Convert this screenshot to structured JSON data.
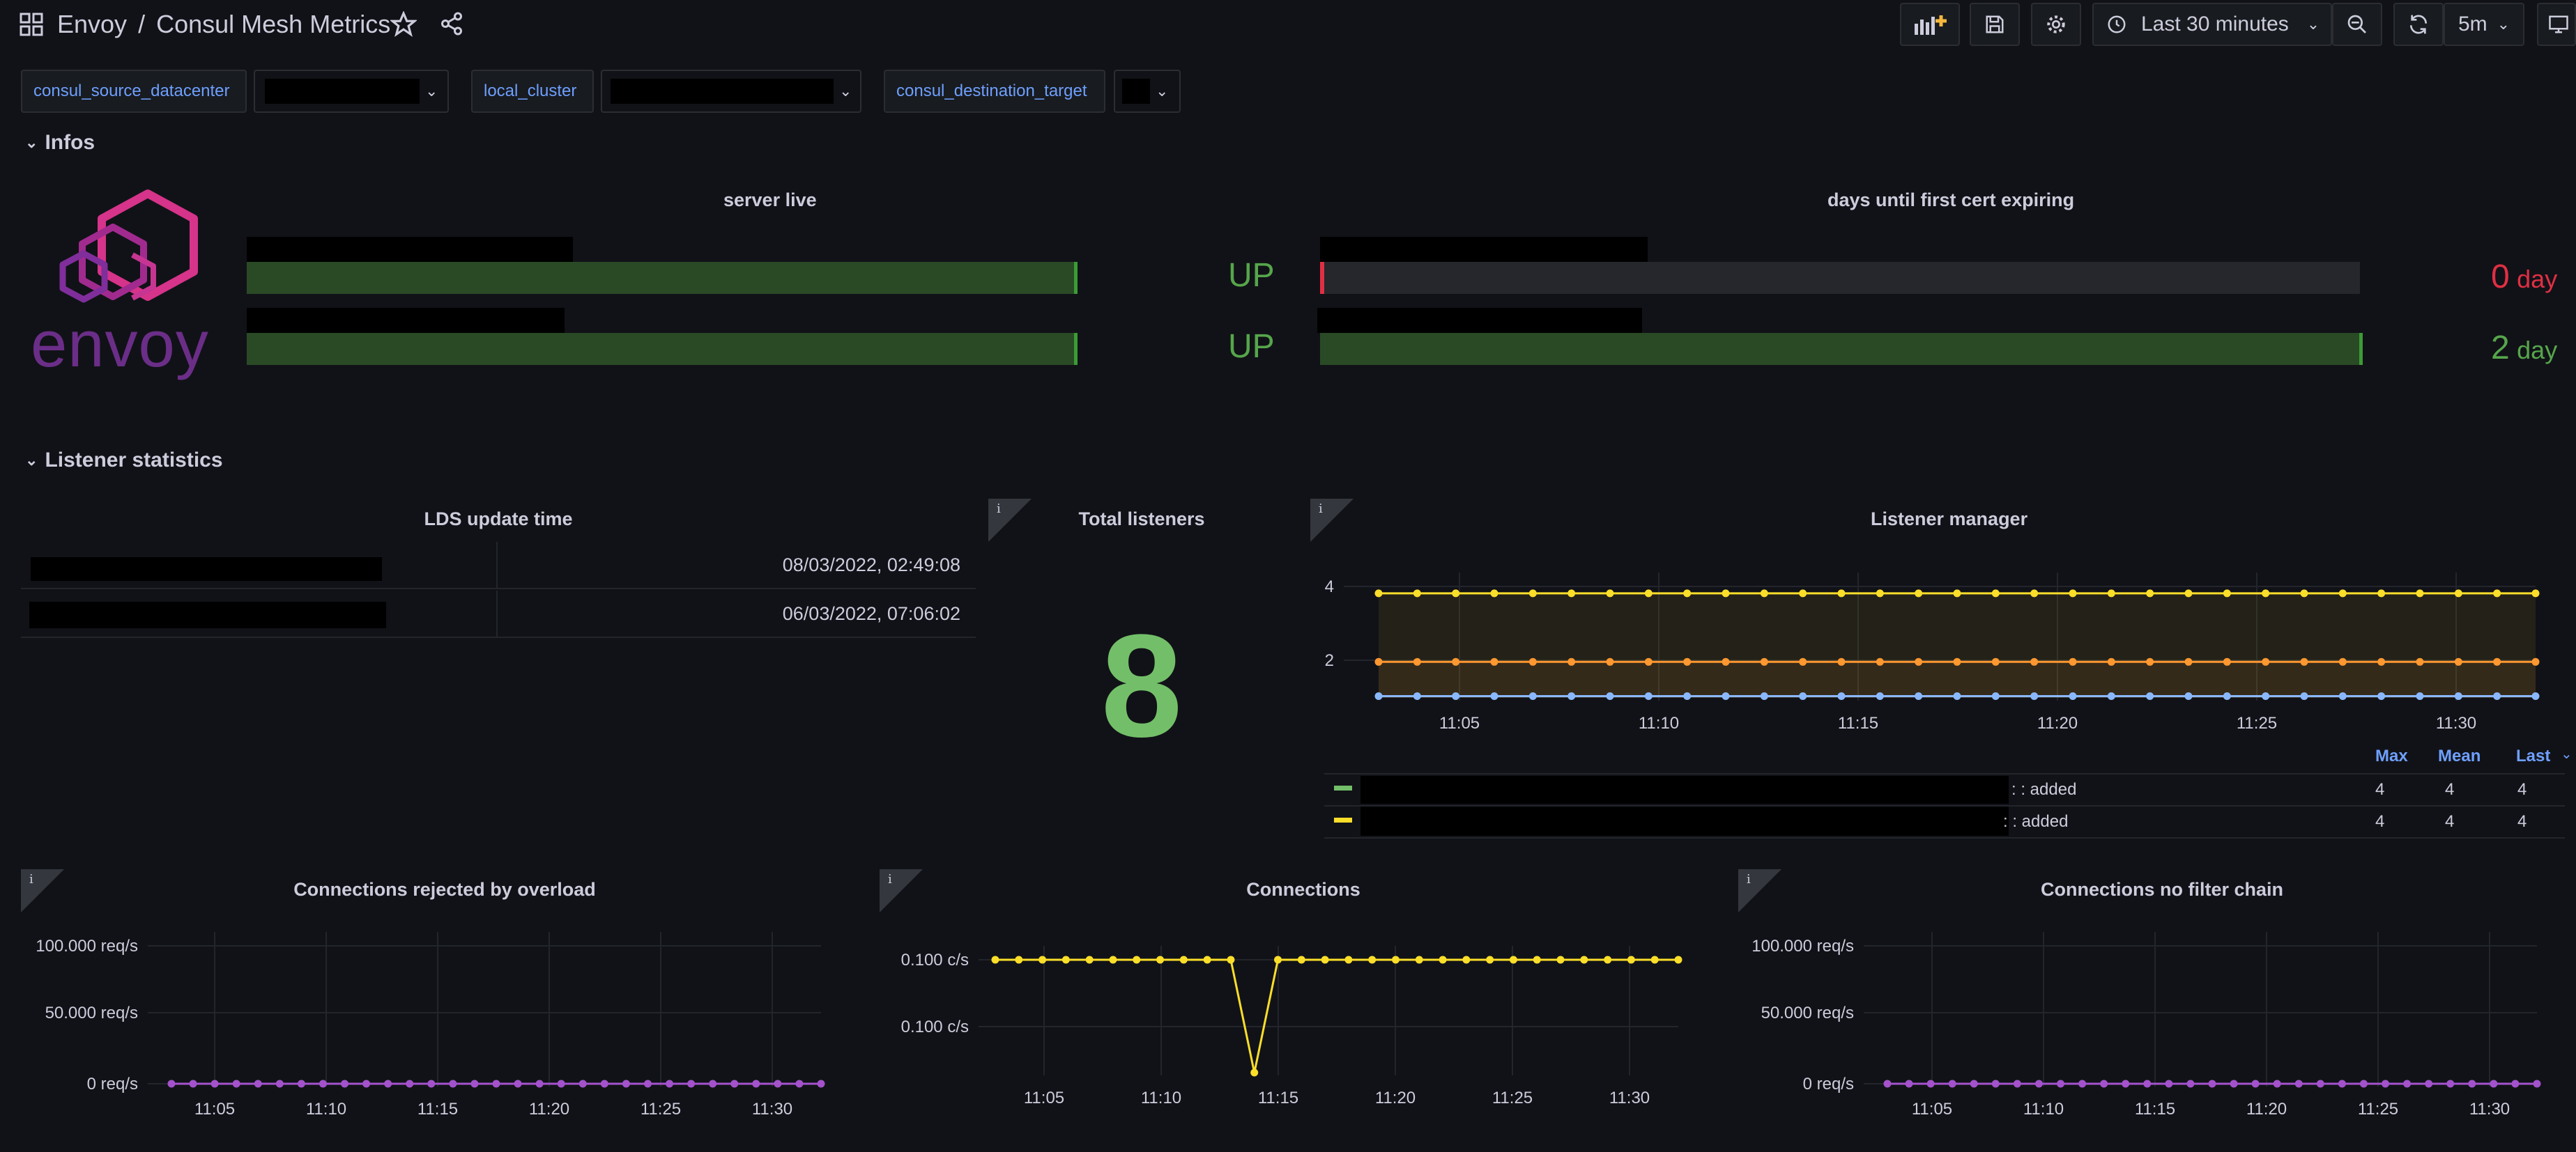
{
  "breadcrumb": {
    "folder": "Envoy",
    "separator": "/",
    "title": "Consul Mesh Metrics"
  },
  "toolbar": {
    "time_range": "Last 30 minutes",
    "refresh_interval": "5m"
  },
  "variables": [
    {
      "label": "consul_source_datacenter"
    },
    {
      "label": "local_cluster"
    },
    {
      "label": "consul_destination_target"
    }
  ],
  "rows": {
    "infos": "Infos",
    "listener": "Listener statistics"
  },
  "logo": {
    "text": "envoy"
  },
  "server_live": {
    "title": "server live",
    "items": [
      {
        "value": "UP",
        "level": 1.0
      },
      {
        "value": "UP",
        "level": 1.0
      }
    ]
  },
  "cert_expiry": {
    "title": "days until first cert expiring",
    "items": [
      {
        "value": "0",
        "unit": "day",
        "level": 0.0,
        "color": "#e02f44"
      },
      {
        "value": "2",
        "unit": "day",
        "level": 1.0,
        "color": "#56a64b"
      }
    ]
  },
  "lds": {
    "title": "LDS update time",
    "rows": [
      {
        "time": "08/03/2022, 02:49:08"
      },
      {
        "time": "06/03/2022, 07:06:02"
      }
    ]
  },
  "total_listeners": {
    "title": "Total listeners",
    "value": "8",
    "info": "i"
  },
  "listener_manager": {
    "title": "Listener manager",
    "info": "i",
    "legend_headers": [
      "Max",
      "Mean",
      "Last"
    ],
    "legend_rows": [
      {
        "suffix": ": : added",
        "max": "4",
        "mean": "4",
        "last": "4",
        "color": "#73bf69"
      },
      {
        "suffix": ": : added",
        "max": "4",
        "mean": "4",
        "last": "4",
        "color": "#fade2a"
      }
    ]
  },
  "panels": {
    "rejected": {
      "title": "Connections rejected by overload",
      "info": "i"
    },
    "connections": {
      "title": "Connections",
      "info": "i"
    },
    "no_filter": {
      "title": "Connections no filter chain",
      "info": "i"
    }
  },
  "chart_data": [
    {
      "type": "line",
      "title": "Listener manager",
      "xticks": [
        "11:05",
        "11:10",
        "11:15",
        "11:20",
        "11:25",
        "11:30"
      ],
      "yticks": [
        "4",
        "2"
      ],
      "ylim": [
        0.95,
        4.2
      ],
      "series": [
        {
          "color": "#fade2a",
          "values": [
            4,
            4,
            4,
            4,
            4,
            4,
            4,
            4,
            4,
            4,
            4,
            4,
            4,
            4,
            4,
            4,
            4,
            4,
            4,
            4,
            4,
            4,
            4,
            4,
            4,
            4,
            4,
            4,
            4,
            4,
            4
          ]
        },
        {
          "color": "#ff9830",
          "values": [
            2,
            2,
            2,
            2,
            2,
            2,
            2,
            2,
            2,
            2,
            2,
            2,
            2,
            2,
            2,
            2,
            2,
            2,
            2,
            2,
            2,
            2,
            2,
            2,
            2,
            2,
            2,
            2,
            2,
            2,
            2
          ]
        },
        {
          "color": "#8ab8ff",
          "values": [
            1,
            1,
            1,
            1,
            1,
            1,
            1,
            1,
            1,
            1,
            1,
            1,
            1,
            1,
            1,
            1,
            1,
            1,
            1,
            1,
            1,
            1,
            1,
            1,
            1,
            1,
            1,
            1,
            1,
            1,
            1
          ]
        }
      ]
    },
    {
      "type": "line",
      "title": "Connections rejected by overload",
      "xticks": [
        "11:05",
        "11:10",
        "11:15",
        "11:20",
        "11:25",
        "11:30"
      ],
      "yticks": [
        "100.000 req/s",
        "50.000 req/s",
        "0 req/s"
      ],
      "ylim": [
        0,
        100
      ],
      "series": [
        {
          "color": "#a352cc",
          "values": [
            0,
            0,
            0,
            0,
            0,
            0,
            0,
            0,
            0,
            0,
            0,
            0,
            0,
            0,
            0,
            0,
            0,
            0,
            0,
            0,
            0,
            0,
            0,
            0,
            0,
            0,
            0,
            0,
            0,
            0,
            0
          ]
        }
      ]
    },
    {
      "type": "line",
      "title": "Connections",
      "xticks": [
        "11:05",
        "11:10",
        "11:15",
        "11:20",
        "11:25",
        "11:30"
      ],
      "yticks": [
        "0.100 c/s",
        "0.100 c/s"
      ],
      "ylim": [
        0,
        0.1
      ],
      "series": [
        {
          "color": "#fade2a",
          "values": [
            0.1,
            0.1,
            0.1,
            0.1,
            0.1,
            0.1,
            0.1,
            0.1,
            0.1,
            0.1,
            0.1,
            0,
            0.1,
            0.1,
            0.1,
            0.1,
            0.1,
            0.1,
            0.1,
            0.1,
            0.1,
            0.1,
            0.1,
            0.1,
            0.1,
            0.1,
            0.1,
            0.1,
            0.1,
            0.1
          ]
        }
      ]
    },
    {
      "type": "line",
      "title": "Connections no filter chain",
      "xticks": [
        "11:05",
        "11:10",
        "11:15",
        "11:20",
        "11:25",
        "11:30"
      ],
      "yticks": [
        "100.000 req/s",
        "50.000 req/s",
        "0 req/s"
      ],
      "ylim": [
        0,
        100
      ],
      "series": [
        {
          "color": "#a352cc",
          "values": [
            0,
            0,
            0,
            0,
            0,
            0,
            0,
            0,
            0,
            0,
            0,
            0,
            0,
            0,
            0,
            0,
            0,
            0,
            0,
            0,
            0,
            0,
            0,
            0,
            0,
            0,
            0,
            0,
            0,
            0,
            0
          ]
        }
      ]
    }
  ]
}
